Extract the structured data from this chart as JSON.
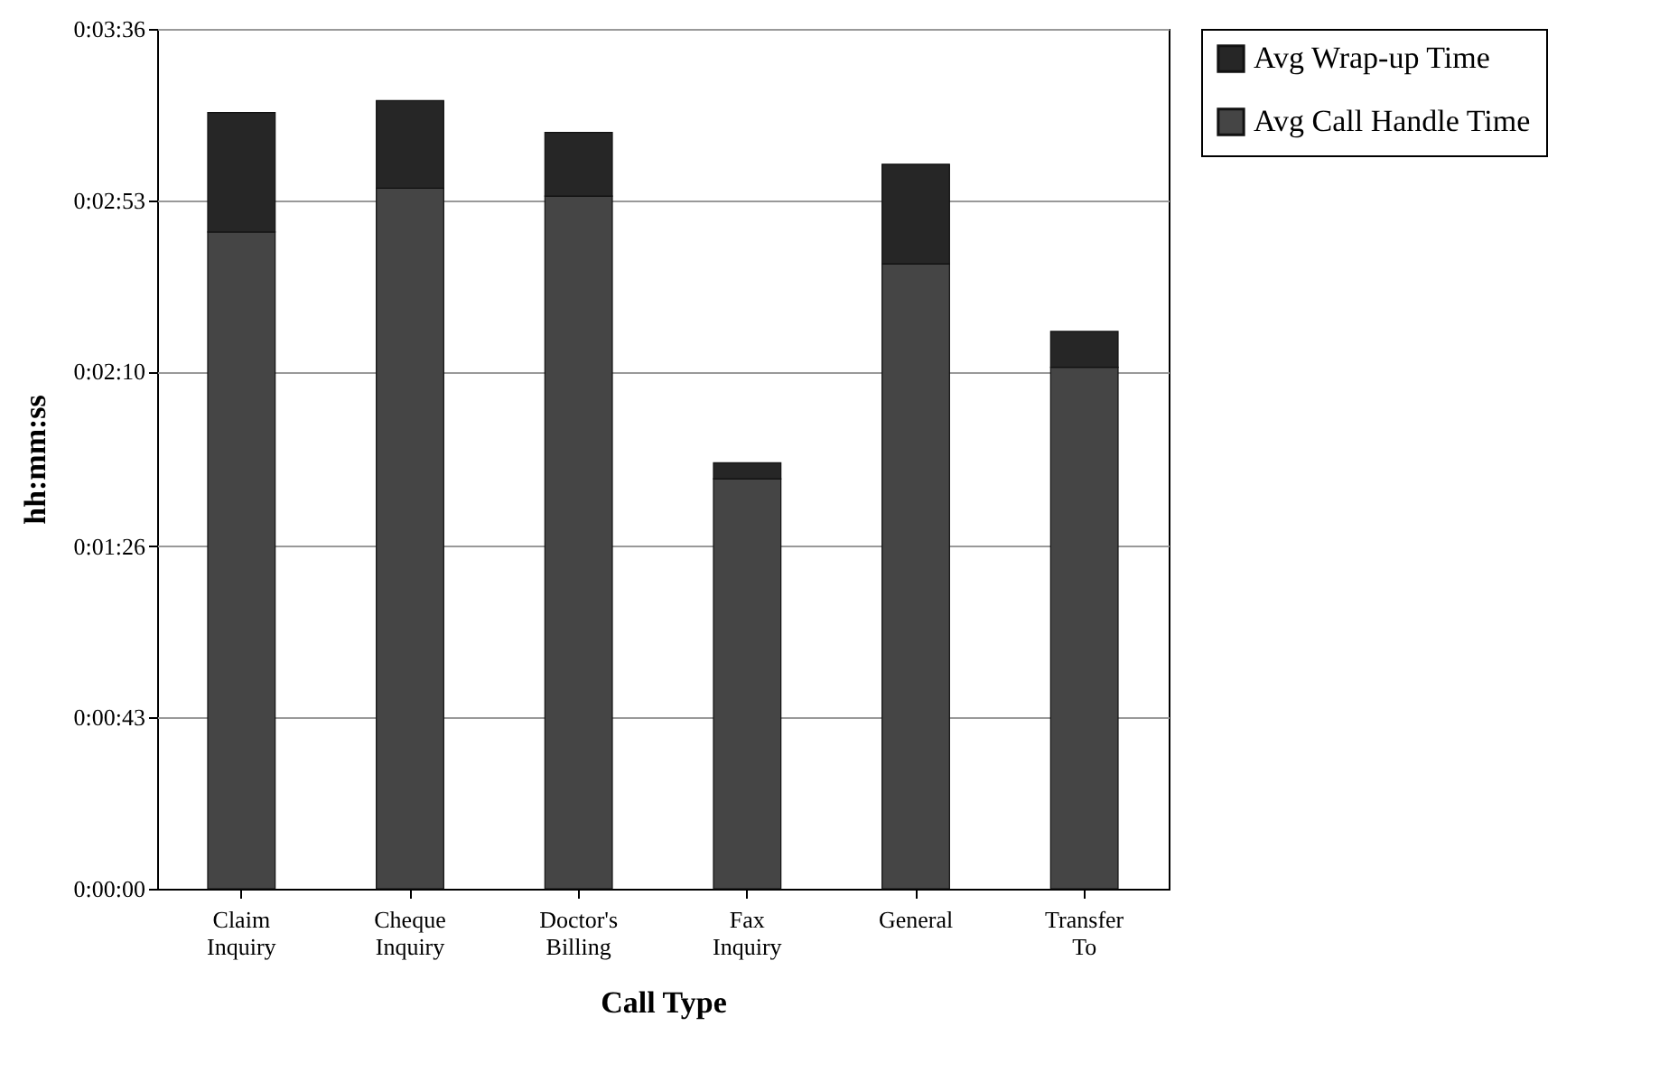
{
  "chart_data": {
    "type": "bar",
    "stacked": true,
    "xlabel": "Call Type",
    "ylabel": "hh:mm:ss",
    "categories": [
      "Claim Inquiry",
      "Cheque Inquiry",
      "Doctor's Billing",
      "Fax Inquiry",
      "General",
      "Transfer To"
    ],
    "series": [
      {
        "name": "Avg Call Handle Time",
        "color": "#454545",
        "values": [
          165,
          176,
          174,
          103,
          157,
          131
        ]
      },
      {
        "name": "Avg Wrap-up Time",
        "color": "#262626",
        "values": [
          30,
          22,
          16,
          4,
          25,
          9
        ]
      }
    ],
    "ylim": [
      0,
      216
    ],
    "yticks": [
      {
        "value": 0,
        "label": "0:00:00"
      },
      {
        "value": 43,
        "label": "0:00:43"
      },
      {
        "value": 86,
        "label": "0:01:26"
      },
      {
        "value": 130,
        "label": "0:02:10"
      },
      {
        "value": 173,
        "label": "0:02:53"
      },
      {
        "value": 216,
        "label": "0:03:36"
      }
    ],
    "grid": "y",
    "legend": "right"
  }
}
